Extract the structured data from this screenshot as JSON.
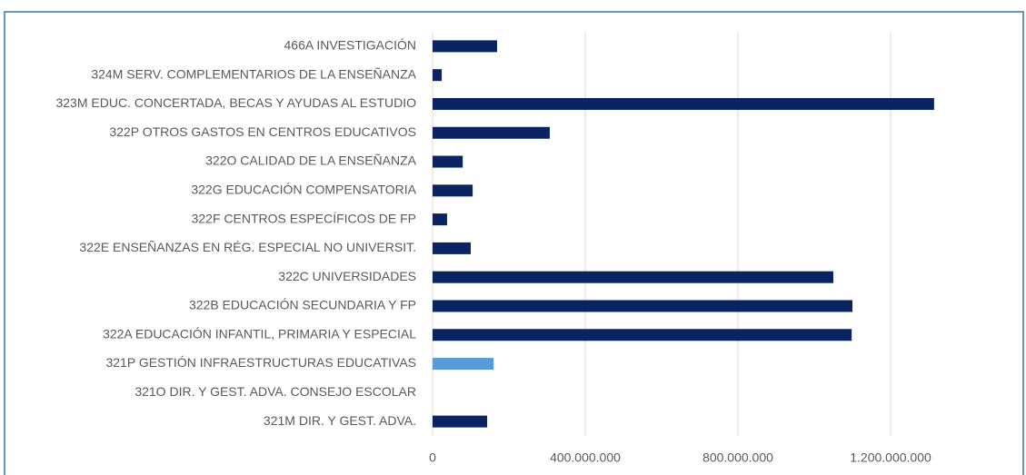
{
  "chart_data": {
    "type": "bar",
    "orientation": "horizontal",
    "categories": [
      "466A INVESTIGACIÓN",
      "324M SERV. COMPLEMENTARIOS DE LA ENSEÑANZA",
      "323M EDUC. CONCERTADA, BECAS Y AYUDAS AL ESTUDIO",
      "322P OTROS GASTOS EN CENTROS EDUCATIVOS",
      "322O CALIDAD DE LA ENSEÑANZA",
      "322G EDUCACIÓN COMPENSATORIA",
      "322F CENTROS ESPECÍFICOS DE FP",
      "322E ENSEÑANZAS EN RÉG. ESPECIAL NO UNIVERSIT.",
      "322C UNIVERSIDADES",
      "322B EDUCACIÓN SECUNDARIA Y FP",
      "322A EDUCACIÓN INFANTIL, PRIMARIA Y ESPECIAL",
      "321P GESTIÓN INFRAESTRUCTURAS EDUCATIVAS",
      "321O DIR. Y GEST. ADVA. CONSEJO ESCOLAR",
      "321M DIR. Y GEST. ADVA."
    ],
    "values": [
      169000000,
      24000000,
      1314000000,
      307000000,
      79000000,
      105000000,
      38000000,
      100000000,
      1050000000,
      1100000000,
      1098000000,
      160000000,
      0,
      143000000
    ],
    "colors": [
      "#0b2461",
      "#0b2461",
      "#0b2461",
      "#0b2461",
      "#0b2461",
      "#0b2461",
      "#0b2461",
      "#0b2461",
      "#0b2461",
      "#0b2461",
      "#0b2461",
      "#5b9bd5",
      "#0b2461",
      "#0b2461"
    ],
    "xlim": [
      0,
      1500000000
    ],
    "xticks": [
      0,
      {
        "value": 400000000,
        "label": "400.000.000"
      },
      {
        "value": 800000000,
        "label": "800.000.000"
      },
      {
        "value": 1200000000,
        "label": "1.200.000.000"
      }
    ],
    "grid": true
  }
}
